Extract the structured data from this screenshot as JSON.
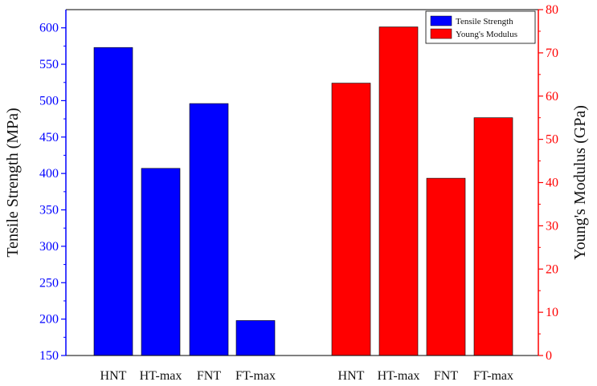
{
  "colors": {
    "left_axis": "#0000ff",
    "right_axis": "#ff0000",
    "tensile_bar": "#0000ff",
    "modulus_bar": "#ff0000"
  },
  "chart_data": {
    "type": "bar",
    "title": "",
    "xlabel": "",
    "ylabel_left": "Tensile Strength (MPa)",
    "ylabel_right": "Young's Modulus (GPa)",
    "ylim_left": [
      150,
      625
    ],
    "ylim_right": [
      0,
      80
    ],
    "yticks_left": [
      150,
      200,
      250,
      300,
      350,
      400,
      450,
      500,
      550,
      600
    ],
    "yticks_right": [
      0,
      10,
      20,
      30,
      40,
      50,
      60,
      70,
      80
    ],
    "grid": false,
    "legend_position": "top-right",
    "series": [
      {
        "name": "Tensile Strength",
        "axis": "left",
        "color": "#0000ff",
        "categories": [
          "HNT",
          "HT-max",
          "FNT",
          "FT-max"
        ],
        "values": [
          573,
          407,
          496,
          198
        ]
      },
      {
        "name": "Young's Modulus",
        "axis": "right",
        "color": "#ff0000",
        "categories": [
          "HNT",
          "HT-max",
          "FNT",
          "FT-max"
        ],
        "values": [
          63,
          76,
          41,
          55
        ]
      }
    ]
  }
}
